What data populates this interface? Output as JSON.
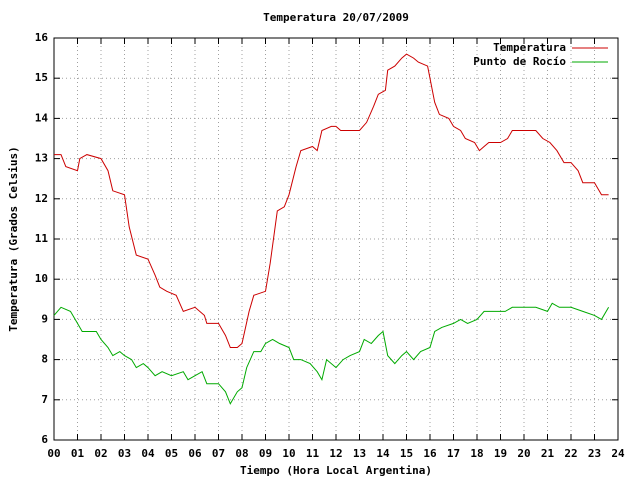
{
  "chart_data": {
    "type": "line",
    "title": "Temperatura 20/07/2009",
    "x_label": "Tiempo (Hora Local Argentina)",
    "y_label": "Temperatura (Grados Celsius)",
    "xlim": [
      0,
      24
    ],
    "ylim": [
      6,
      16
    ],
    "xticks": [
      {
        "value": 0,
        "label": "00"
      },
      {
        "value": 1,
        "label": "01"
      },
      {
        "value": 2,
        "label": "02"
      },
      {
        "value": 3,
        "label": "03"
      },
      {
        "value": 4,
        "label": "04"
      },
      {
        "value": 5,
        "label": "05"
      },
      {
        "value": 6,
        "label": "06"
      },
      {
        "value": 7,
        "label": "07"
      },
      {
        "value": 8,
        "label": "08"
      },
      {
        "value": 9,
        "label": "09"
      },
      10,
      11,
      12,
      13,
      14,
      15,
      16,
      17,
      18,
      19,
      20,
      21,
      22,
      23,
      24
    ],
    "yticks": [
      6,
      7,
      8,
      9,
      10,
      11,
      12,
      13,
      14,
      15,
      16
    ],
    "grid": true,
    "legend": "top-right",
    "series": [
      {
        "name": "Temperatura",
        "color": "#cc0000",
        "x": [
          0,
          0.3,
          0.5,
          1.0,
          1.1,
          1.4,
          2.0,
          2.3,
          2.5,
          3.0,
          3.2,
          3.5,
          4.0,
          4.3,
          4.5,
          4.8,
          5.2,
          5.5,
          6.0,
          6.4,
          6.5,
          7.0,
          7.3,
          7.5,
          7.8,
          8.0,
          8.3,
          8.5,
          9.0,
          9.2,
          9.5,
          9.8,
          10.0,
          10.3,
          10.5,
          11.0,
          11.2,
          11.4,
          11.8,
          12.0,
          12.2,
          13.0,
          13.3,
          13.6,
          13.8,
          14.1,
          14.2,
          14.5,
          14.8,
          15.0,
          15.3,
          15.5,
          15.9,
          16.2,
          16.4,
          16.8,
          17.0,
          17.3,
          17.5,
          17.9,
          18.1,
          18.3,
          18.5,
          19.0,
          19.3,
          19.5,
          20.0,
          20.5,
          20.8,
          21.1,
          21.4,
          21.7,
          22.0,
          22.3,
          22.5,
          23.0,
          23.3,
          23.6
        ],
        "values": [
          13.1,
          13.1,
          12.8,
          12.7,
          13.0,
          13.1,
          13.0,
          12.7,
          12.2,
          12.1,
          11.3,
          10.6,
          10.5,
          10.1,
          9.8,
          9.7,
          9.6,
          9.2,
          9.3,
          9.1,
          8.9,
          8.9,
          8.6,
          8.3,
          8.3,
          8.4,
          9.2,
          9.6,
          9.7,
          10.4,
          11.7,
          11.8,
          12.1,
          12.8,
          13.2,
          13.3,
          13.2,
          13.7,
          13.8,
          13.8,
          13.7,
          13.7,
          13.9,
          14.3,
          14.6,
          14.7,
          15.2,
          15.3,
          15.5,
          15.6,
          15.5,
          15.4,
          15.3,
          14.4,
          14.1,
          14.0,
          13.8,
          13.7,
          13.5,
          13.4,
          13.2,
          13.3,
          13.4,
          13.4,
          13.5,
          13.7,
          13.7,
          13.7,
          13.5,
          13.4,
          13.2,
          12.9,
          12.9,
          12.7,
          12.4,
          12.4,
          12.1,
          12.1
        ]
      },
      {
        "name": "Punto de Rocío",
        "color": "#00aa00",
        "x": [
          0,
          0.3,
          0.7,
          1.0,
          1.2,
          1.8,
          2.0,
          2.3,
          2.5,
          2.8,
          3.0,
          3.3,
          3.5,
          3.8,
          4.0,
          4.3,
          4.6,
          5.0,
          5.5,
          5.7,
          6.0,
          6.3,
          6.5,
          7.0,
          7.3,
          7.5,
          7.8,
          8.0,
          8.2,
          8.5,
          8.8,
          9.0,
          9.3,
          9.6,
          10.0,
          10.2,
          10.5,
          10.9,
          11.2,
          11.4,
          11.6,
          12.0,
          12.3,
          12.6,
          13.0,
          13.2,
          13.5,
          13.8,
          14.0,
          14.2,
          14.5,
          14.8,
          15.0,
          15.3,
          15.6,
          16.0,
          16.2,
          16.5,
          17.0,
          17.3,
          17.6,
          18.0,
          18.3,
          18.8,
          19.2,
          19.5,
          20.0,
          20.5,
          21.0,
          21.2,
          21.5,
          22.0,
          22.5,
          23.0,
          23.3,
          23.6
        ],
        "values": [
          9.1,
          9.3,
          9.2,
          8.9,
          8.7,
          8.7,
          8.5,
          8.3,
          8.1,
          8.2,
          8.1,
          8.0,
          7.8,
          7.9,
          7.8,
          7.6,
          7.7,
          7.6,
          7.7,
          7.5,
          7.6,
          7.7,
          7.4,
          7.4,
          7.2,
          6.9,
          7.2,
          7.3,
          7.8,
          8.2,
          8.2,
          8.4,
          8.5,
          8.4,
          8.3,
          8.0,
          8.0,
          7.9,
          7.7,
          7.5,
          8.0,
          7.8,
          8.0,
          8.1,
          8.2,
          8.5,
          8.4,
          8.6,
          8.7,
          8.1,
          7.9,
          8.1,
          8.2,
          8.0,
          8.2,
          8.3,
          8.7,
          8.8,
          8.9,
          9.0,
          8.9,
          9.0,
          9.2,
          9.2,
          9.2,
          9.3,
          9.3,
          9.3,
          9.2,
          9.4,
          9.3,
          9.3,
          9.2,
          9.1,
          9.0,
          9.3
        ]
      }
    ]
  }
}
